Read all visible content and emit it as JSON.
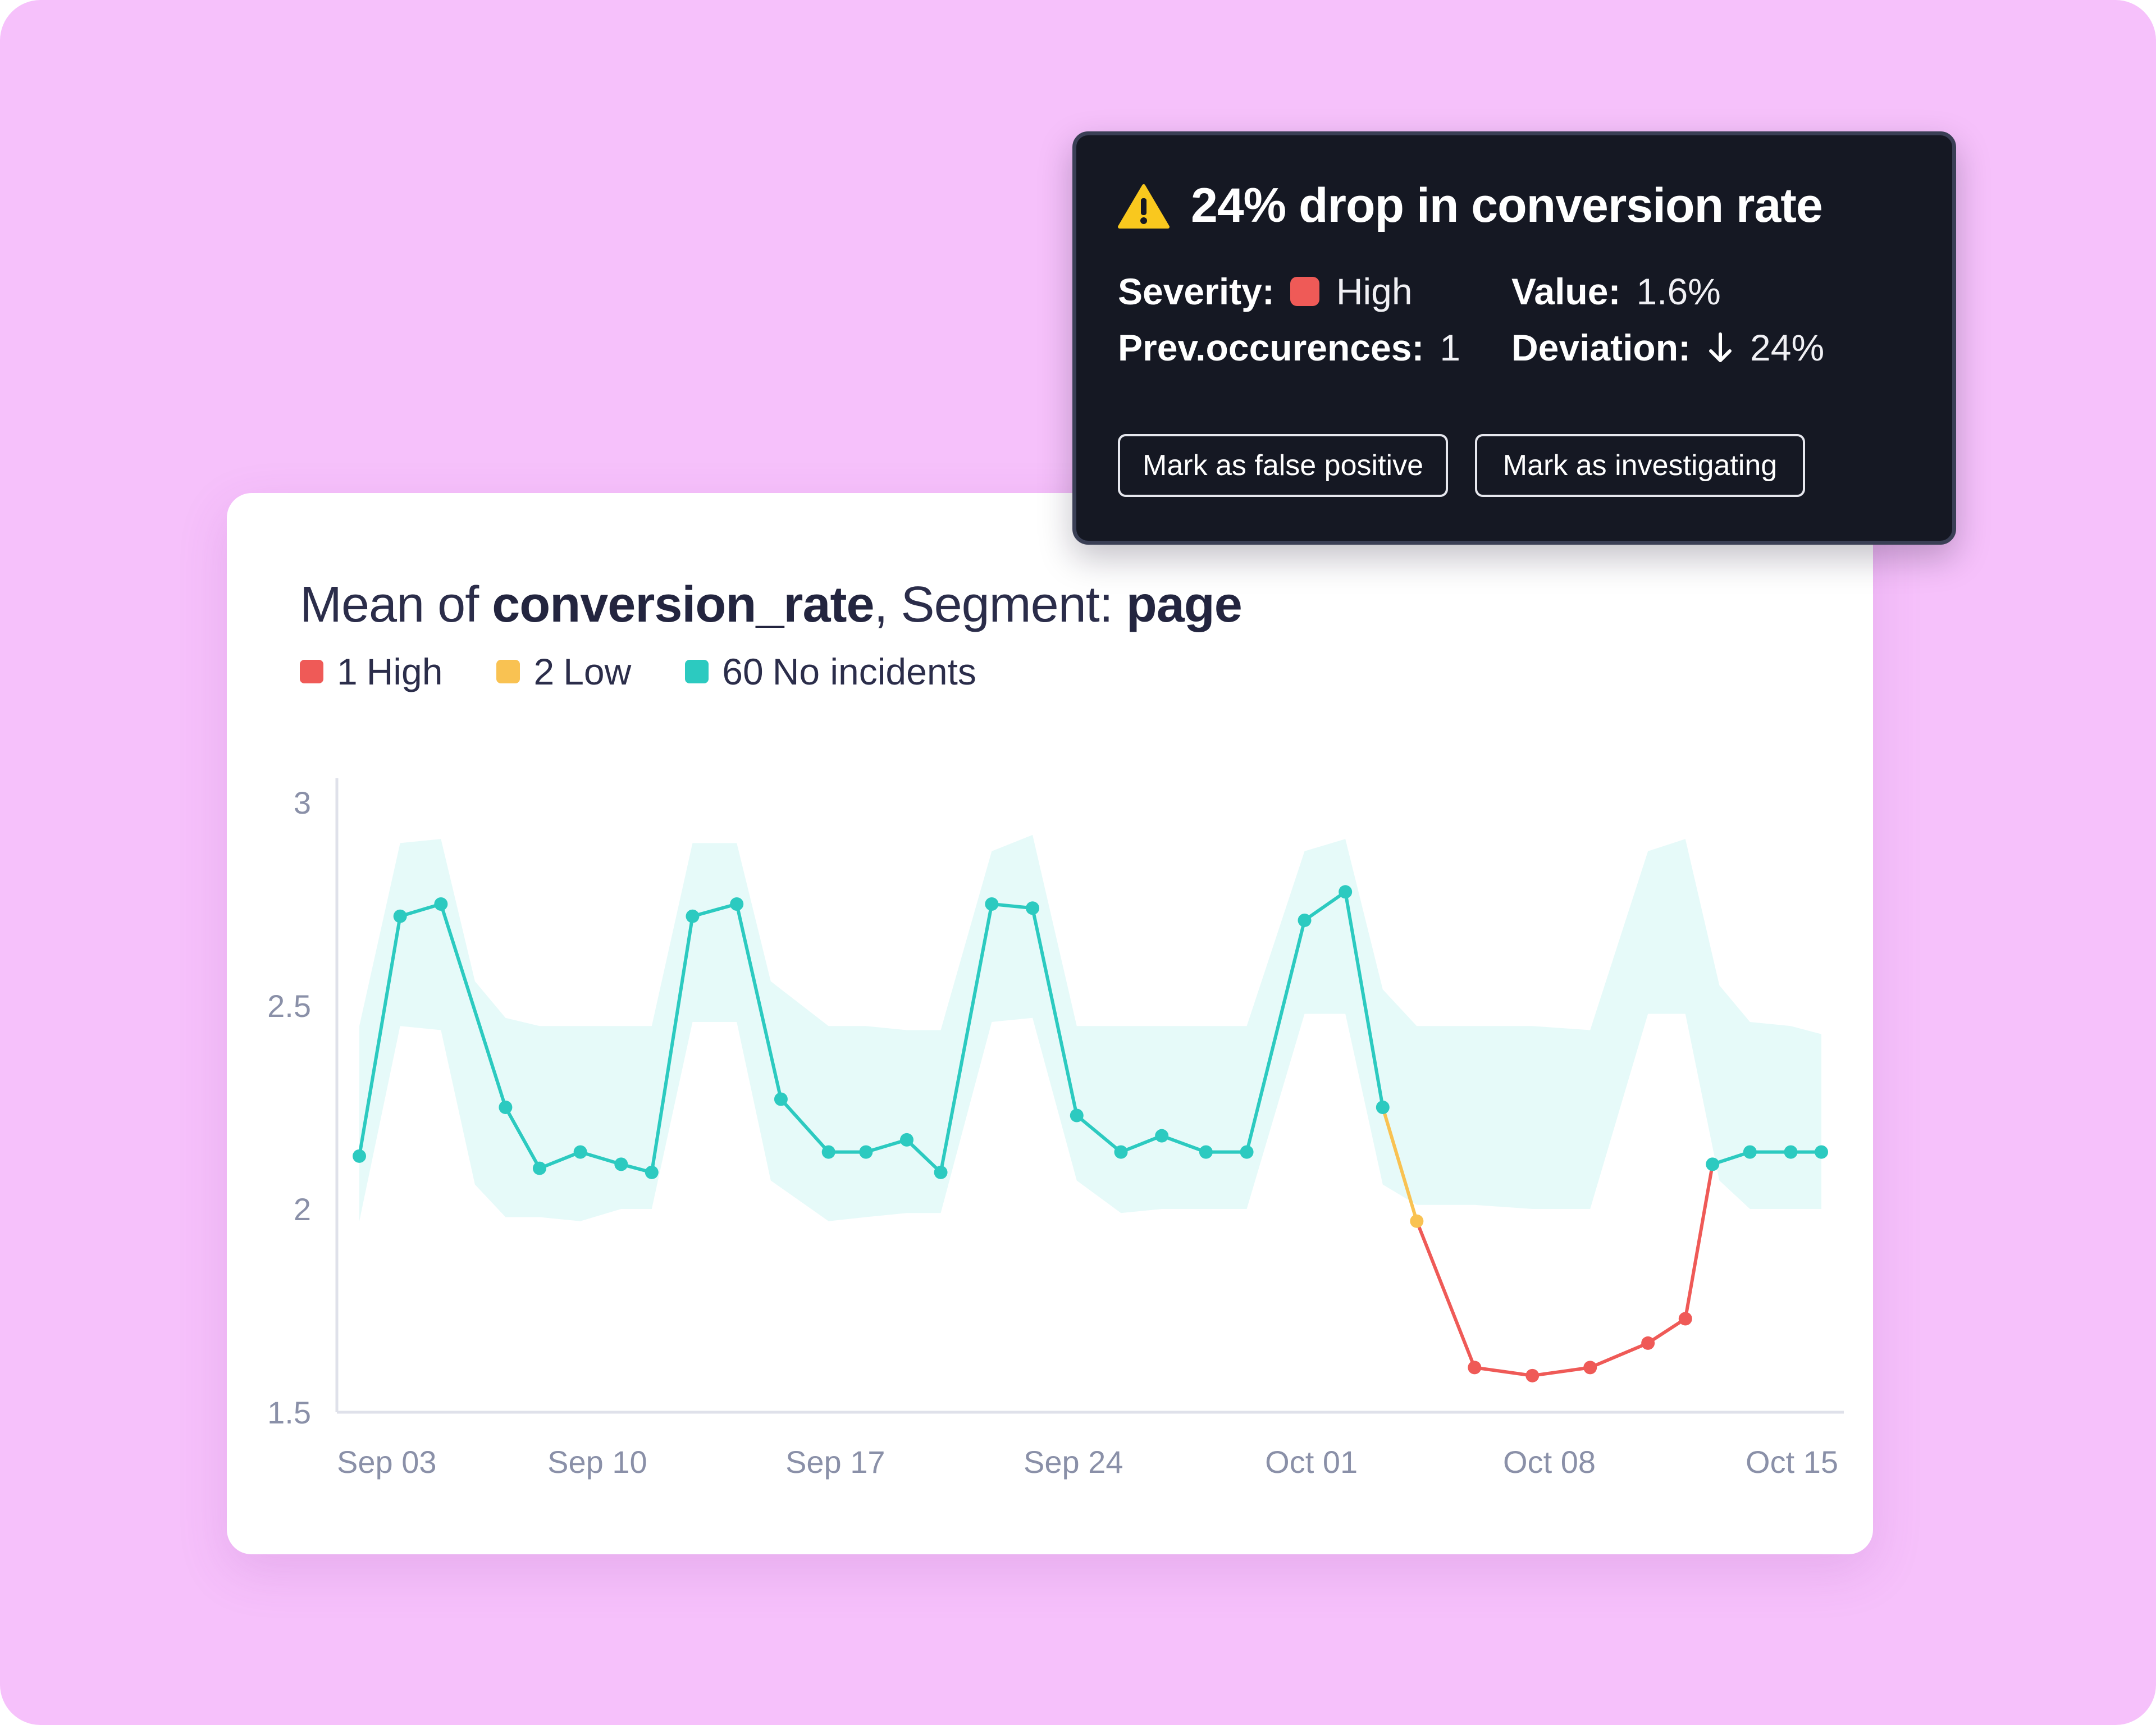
{
  "alert": {
    "title": "24% drop in conversion rate",
    "severity_label": "Severity:",
    "severity_value": "High",
    "severity_color": "#ef5a57",
    "value_label": "Value:",
    "value": "1.6%",
    "prev_label": "Prev.occurences:",
    "prev_value": "1",
    "deviation_label": "Deviation:",
    "deviation_value": "24%",
    "deviation_icon": "arrow-down-icon",
    "buttons": {
      "false_positive": "Mark as false positive",
      "investigating": "Mark as investigating"
    }
  },
  "chart_card": {
    "title_prefix": "Mean of",
    "metric": "conversion_rate",
    "title_mid": ", Segment:",
    "segment": "page"
  },
  "legend": [
    {
      "count": "1",
      "label": "High",
      "color": "#ef5a57"
    },
    {
      "count": "2",
      "label": "Low",
      "color": "#f9c252"
    },
    {
      "count": "60",
      "label": "No incidents",
      "color": "#2ccac0"
    }
  ],
  "chart_data": {
    "type": "line",
    "x_tick_labels": [
      "Sep 03",
      "Sep 10",
      "Sep 17",
      "Sep 24",
      "Oct 01",
      "Oct 08",
      "Oct 15"
    ],
    "x_tick_days": [
      0,
      7,
      14,
      21,
      28,
      35,
      42
    ],
    "y_ticks": [
      3,
      2.5,
      2,
      1.5
    ],
    "ylim": [
      1.5,
      3
    ],
    "xlim": [
      0,
      43
    ],
    "colors": {
      "normal": "#2ccac0",
      "low": "#f9c252",
      "high": "#ef5a57",
      "band": "#e6faf9"
    },
    "series": [
      {
        "points": [
          {
            "day": 0,
            "value": 2.13,
            "status": "normal"
          },
          {
            "day": 1.2,
            "value": 2.72,
            "status": "normal"
          },
          {
            "day": 2.4,
            "value": 2.75,
            "status": "normal"
          },
          {
            "day": 4.3,
            "value": 2.25,
            "status": "normal"
          },
          {
            "day": 5.3,
            "value": 2.1,
            "status": "normal"
          },
          {
            "day": 6.5,
            "value": 2.14,
            "status": "normal"
          },
          {
            "day": 7.7,
            "value": 2.11,
            "status": "normal"
          },
          {
            "day": 8.6,
            "value": 2.09,
            "status": "normal"
          },
          {
            "day": 9.8,
            "value": 2.72,
            "status": "normal"
          },
          {
            "day": 11.1,
            "value": 2.75,
            "status": "normal"
          },
          {
            "day": 12.4,
            "value": 2.27,
            "status": "normal"
          },
          {
            "day": 13.8,
            "value": 2.14,
            "status": "normal"
          },
          {
            "day": 14.9,
            "value": 2.14,
            "status": "normal"
          },
          {
            "day": 16.1,
            "value": 2.17,
            "status": "normal"
          },
          {
            "day": 17.1,
            "value": 2.09,
            "status": "normal"
          },
          {
            "day": 18.6,
            "value": 2.75,
            "status": "normal"
          },
          {
            "day": 19.8,
            "value": 2.74,
            "status": "normal"
          },
          {
            "day": 21.1,
            "value": 2.23,
            "status": "normal"
          },
          {
            "day": 22.4,
            "value": 2.14,
            "status": "normal"
          },
          {
            "day": 23.6,
            "value": 2.18,
            "status": "normal"
          },
          {
            "day": 24.9,
            "value": 2.14,
            "status": "normal"
          },
          {
            "day": 26.1,
            "value": 2.14,
            "status": "normal"
          },
          {
            "day": 27.8,
            "value": 2.71,
            "status": "normal"
          },
          {
            "day": 29.0,
            "value": 2.78,
            "status": "normal"
          },
          {
            "day": 30.1,
            "value": 2.25,
            "status": "normal"
          },
          {
            "day": 31.1,
            "value": 1.97,
            "status": "low"
          },
          {
            "day": 32.8,
            "value": 1.61,
            "status": "high"
          },
          {
            "day": 34.5,
            "value": 1.59,
            "status": "high"
          },
          {
            "day": 36.2,
            "value": 1.61,
            "status": "high"
          },
          {
            "day": 37.9,
            "value": 1.67,
            "status": "high"
          },
          {
            "day": 39.0,
            "value": 1.73,
            "status": "high"
          },
          {
            "day": 39.8,
            "value": 2.11,
            "status": "normal"
          },
          {
            "day": 40.9,
            "value": 2.14,
            "status": "normal"
          },
          {
            "day": 42.1,
            "value": 2.14,
            "status": "normal"
          },
          {
            "day": 43.0,
            "value": 2.14,
            "status": "normal"
          }
        ]
      }
    ],
    "band": {
      "days": [
        0,
        1.2,
        2.4,
        3.4,
        4.3,
        5.3,
        6.5,
        7.7,
        8.6,
        9.8,
        11.1,
        12.1,
        13.8,
        14.9,
        16.1,
        17.1,
        18.6,
        19.8,
        21.1,
        22.4,
        23.6,
        24.9,
        26.1,
        27.8,
        29.0,
        30.1,
        31.1,
        32.8,
        34.5,
        36.2,
        37.9,
        39.0,
        40.0,
        40.9,
        42.1,
        43.0
      ],
      "upper": [
        2.45,
        2.9,
        2.91,
        2.56,
        2.47,
        2.45,
        2.45,
        2.45,
        2.45,
        2.9,
        2.9,
        2.56,
        2.45,
        2.45,
        2.44,
        2.44,
        2.88,
        2.92,
        2.45,
        2.45,
        2.45,
        2.45,
        2.45,
        2.88,
        2.91,
        2.54,
        2.45,
        2.45,
        2.45,
        2.44,
        2.88,
        2.91,
        2.55,
        2.46,
        2.45,
        2.43
      ],
      "lower": [
        1.97,
        2.45,
        2.44,
        2.06,
        1.98,
        1.98,
        1.97,
        2.0,
        2.0,
        2.46,
        2.46,
        2.07,
        1.97,
        1.98,
        1.99,
        1.99,
        2.46,
        2.47,
        2.07,
        1.99,
        2.0,
        2.0,
        2.0,
        2.48,
        2.48,
        2.06,
        2.01,
        2.01,
        2.0,
        2.0,
        2.48,
        2.48,
        2.07,
        2.0,
        2.0,
        2.0
      ]
    }
  }
}
